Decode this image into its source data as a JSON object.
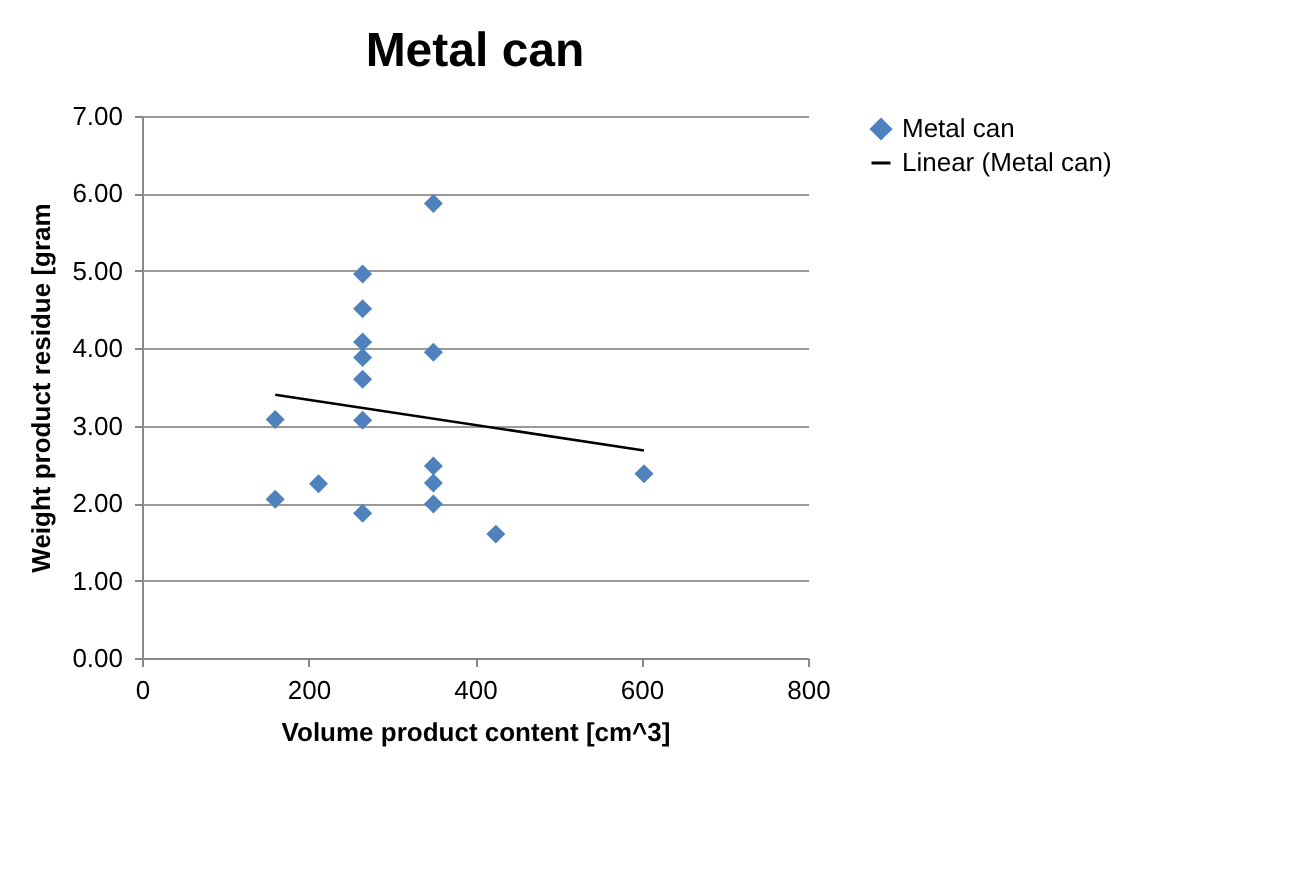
{
  "chart_data": {
    "type": "scatter",
    "title": "Metal can",
    "xlabel": "Volume product content [cm^3]",
    "ylabel": "Weight product residue [gram",
    "series": [
      {
        "name": "Metal can",
        "color": "#4f81bd",
        "marker": "diamond",
        "x": [
          160,
          160,
          212,
          265,
          265,
          265,
          265,
          265,
          265,
          265,
          350,
          350,
          350,
          350,
          350,
          425,
          603
        ],
        "values": [
          3.08,
          2.05,
          2.25,
          4.96,
          4.51,
          4.08,
          3.88,
          3.6,
          3.07,
          1.87,
          5.87,
          3.95,
          2.48,
          2.26,
          1.99,
          1.6,
          2.38
        ]
      },
      {
        "name": "Linear (Metal can)",
        "type": "line",
        "color": "#000000",
        "marker": "none",
        "x": [
          160,
          603
        ],
        "values": [
          3.4,
          2.68
        ]
      }
    ],
    "xlim": [
      0,
      800
    ],
    "xticks": [
      0,
      200,
      400,
      600,
      800
    ],
    "ylim": [
      0,
      7
    ],
    "yticks": [
      {
        "value": 0,
        "label": "0.00"
      },
      {
        "value": 1,
        "label": "1.00"
      },
      {
        "value": 2,
        "label": "2.00"
      },
      {
        "value": 3,
        "label": "3.00"
      },
      {
        "value": 4,
        "label": "4.00"
      },
      {
        "value": 5,
        "label": "5.00"
      },
      {
        "value": 6,
        "label": "6.00"
      },
      {
        "value": 7,
        "label": "7.00"
      }
    ],
    "grid": "y",
    "legend": "right"
  }
}
